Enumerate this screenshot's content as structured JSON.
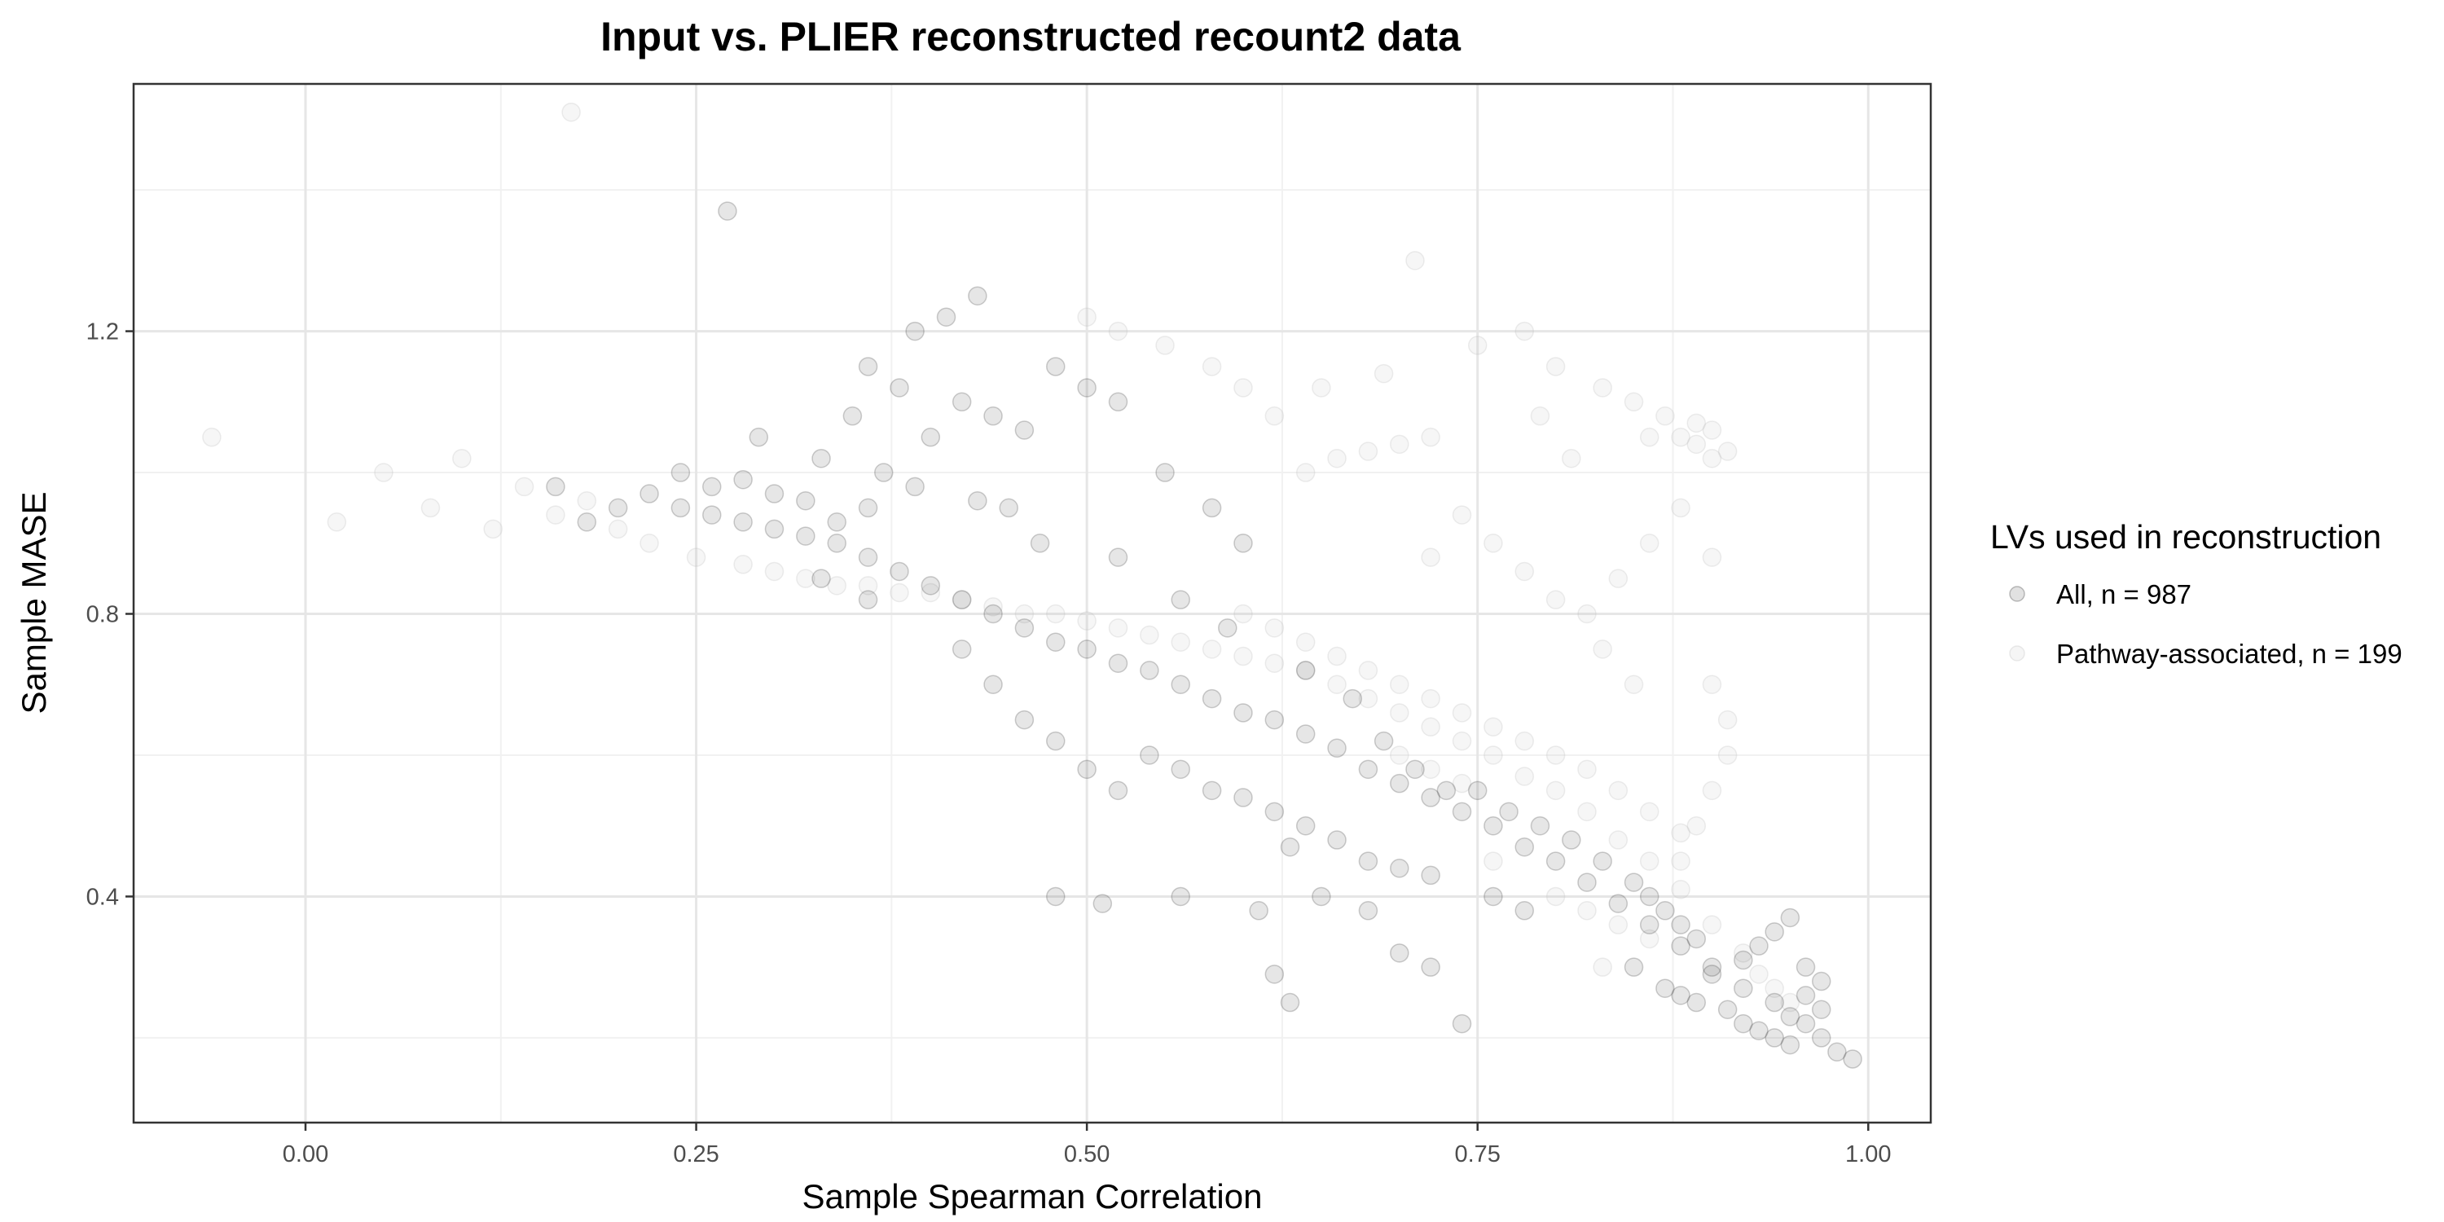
{
  "chart_data": {
    "type": "scatter",
    "title": "Input vs. PLIER reconstructed recount2 data",
    "xlabel": "Sample Spearman Correlation",
    "ylabel": "Sample MASE",
    "xlim": [
      -0.11,
      1.04
    ],
    "ylim": [
      0.08,
      1.55
    ],
    "x_ticks": [
      0.0,
      0.25,
      0.5,
      0.75,
      1.0
    ],
    "x_tick_labels": [
      "0.00",
      "0.25",
      "0.50",
      "0.75",
      "1.00"
    ],
    "y_ticks": [
      0.4,
      0.8,
      1.2
    ],
    "y_tick_labels": [
      "0.4",
      "0.8",
      "1.2"
    ],
    "grid": true,
    "legend_position": "right",
    "legend_title": "LVs used in reconstruction",
    "series": [
      {
        "name": "All, n = 987",
        "color": "#333333",
        "opacity": 0.12,
        "points": [
          [
            0.22,
            0.97
          ],
          [
            0.24,
            0.95
          ],
          [
            0.26,
            0.94
          ],
          [
            0.28,
            0.93
          ],
          [
            0.3,
            0.92
          ],
          [
            0.32,
            0.91
          ],
          [
            0.34,
            0.9
          ],
          [
            0.36,
            0.88
          ],
          [
            0.38,
            0.86
          ],
          [
            0.4,
            0.84
          ],
          [
            0.42,
            0.82
          ],
          [
            0.44,
            0.8
          ],
          [
            0.46,
            0.78
          ],
          [
            0.48,
            0.76
          ],
          [
            0.5,
            0.75
          ],
          [
            0.52,
            0.73
          ],
          [
            0.54,
            0.72
          ],
          [
            0.56,
            0.7
          ],
          [
            0.58,
            0.68
          ],
          [
            0.6,
            0.66
          ],
          [
            0.62,
            0.65
          ],
          [
            0.64,
            0.63
          ],
          [
            0.66,
            0.61
          ],
          [
            0.68,
            0.58
          ],
          [
            0.7,
            0.56
          ],
          [
            0.72,
            0.54
          ],
          [
            0.74,
            0.52
          ],
          [
            0.76,
            0.5
          ],
          [
            0.78,
            0.47
          ],
          [
            0.8,
            0.45
          ],
          [
            0.82,
            0.42
          ],
          [
            0.84,
            0.39
          ],
          [
            0.86,
            0.36
          ],
          [
            0.88,
            0.33
          ],
          [
            0.9,
            0.3
          ],
          [
            0.92,
            0.27
          ],
          [
            0.94,
            0.25
          ],
          [
            0.95,
            0.23
          ],
          [
            0.96,
            0.22
          ],
          [
            0.97,
            0.2
          ],
          [
            0.98,
            0.18
          ],
          [
            0.99,
            0.17
          ],
          [
            0.28,
            0.99
          ],
          [
            0.3,
            0.97
          ],
          [
            0.32,
            0.96
          ],
          [
            0.34,
            0.93
          ],
          [
            0.36,
            0.95
          ],
          [
            0.26,
            0.98
          ],
          [
            0.4,
            1.05
          ],
          [
            0.42,
            1.1
          ],
          [
            0.44,
            1.08
          ],
          [
            0.38,
            1.12
          ],
          [
            0.36,
            1.15
          ],
          [
            0.46,
            1.06
          ],
          [
            0.41,
            1.22
          ],
          [
            0.43,
            1.25
          ],
          [
            0.39,
            1.2
          ],
          [
            0.48,
            1.15
          ],
          [
            0.5,
            1.12
          ],
          [
            0.52,
            1.1
          ],
          [
            0.35,
            1.08
          ],
          [
            0.45,
            0.95
          ],
          [
            0.47,
            0.9
          ],
          [
            0.55,
            1.0
          ],
          [
            0.58,
            0.95
          ],
          [
            0.6,
            0.9
          ],
          [
            0.54,
            0.6
          ],
          [
            0.56,
            0.58
          ],
          [
            0.58,
            0.55
          ],
          [
            0.6,
            0.54
          ],
          [
            0.62,
            0.52
          ],
          [
            0.64,
            0.5
          ],
          [
            0.52,
            0.55
          ],
          [
            0.5,
            0.58
          ],
          [
            0.48,
            0.62
          ],
          [
            0.46,
            0.65
          ],
          [
            0.44,
            0.7
          ],
          [
            0.42,
            0.75
          ],
          [
            0.66,
            0.48
          ],
          [
            0.68,
            0.45
          ],
          [
            0.7,
            0.44
          ],
          [
            0.72,
            0.43
          ],
          [
            0.63,
            0.47
          ],
          [
            0.65,
            0.4
          ],
          [
            0.48,
            0.4
          ],
          [
            0.51,
            0.39
          ],
          [
            0.56,
            0.4
          ],
          [
            0.61,
            0.38
          ],
          [
            0.62,
            0.29
          ],
          [
            0.63,
            0.25
          ],
          [
            0.68,
            0.38
          ],
          [
            0.7,
            0.32
          ],
          [
            0.72,
            0.3
          ],
          [
            0.74,
            0.22
          ],
          [
            0.76,
            0.4
          ],
          [
            0.78,
            0.38
          ],
          [
            0.85,
            0.3
          ],
          [
            0.87,
            0.27
          ],
          [
            0.88,
            0.26
          ],
          [
            0.89,
            0.25
          ],
          [
            0.9,
            0.29
          ],
          [
            0.91,
            0.24
          ],
          [
            0.92,
            0.31
          ],
          [
            0.93,
            0.33
          ],
          [
            0.94,
            0.35
          ],
          [
            0.95,
            0.37
          ],
          [
            0.93,
            0.21
          ],
          [
            0.94,
            0.2
          ],
          [
            0.95,
            0.19
          ],
          [
            0.96,
            0.26
          ],
          [
            0.97,
            0.28
          ],
          [
            0.92,
            0.22
          ],
          [
            0.96,
            0.3
          ],
          [
            0.97,
            0.24
          ],
          [
            0.27,
            1.37
          ],
          [
            0.29,
            1.05
          ],
          [
            0.33,
            1.02
          ],
          [
            0.37,
            1.0
          ],
          [
            0.39,
            0.98
          ],
          [
            0.43,
            0.96
          ],
          [
            0.2,
            0.95
          ],
          [
            0.18,
            0.93
          ],
          [
            0.16,
            0.98
          ],
          [
            0.24,
            1.0
          ],
          [
            0.33,
            0.85
          ],
          [
            0.36,
            0.82
          ],
          [
            0.52,
            0.88
          ],
          [
            0.56,
            0.82
          ],
          [
            0.59,
            0.78
          ],
          [
            0.64,
            0.72
          ],
          [
            0.67,
            0.68
          ],
          [
            0.69,
            0.62
          ],
          [
            0.71,
            0.58
          ],
          [
            0.73,
            0.55
          ],
          [
            0.75,
            0.55
          ],
          [
            0.77,
            0.52
          ],
          [
            0.79,
            0.5
          ],
          [
            0.81,
            0.48
          ],
          [
            0.83,
            0.45
          ],
          [
            0.85,
            0.42
          ],
          [
            0.86,
            0.4
          ],
          [
            0.87,
            0.38
          ],
          [
            0.88,
            0.36
          ],
          [
            0.89,
            0.34
          ]
        ]
      },
      {
        "name": "Pathway-associated, n = 199",
        "color": "#bdbdbd",
        "opacity": 0.14,
        "points": [
          [
            -0.06,
            1.05
          ],
          [
            0.02,
            0.93
          ],
          [
            0.05,
            1.0
          ],
          [
            0.08,
            0.95
          ],
          [
            0.1,
            1.02
          ],
          [
            0.12,
            0.92
          ],
          [
            0.14,
            0.98
          ],
          [
            0.16,
            0.94
          ],
          [
            0.18,
            0.96
          ],
          [
            0.2,
            0.92
          ],
          [
            0.22,
            0.9
          ],
          [
            0.25,
            0.88
          ],
          [
            0.28,
            0.87
          ],
          [
            0.3,
            0.86
          ],
          [
            0.32,
            0.85
          ],
          [
            0.34,
            0.84
          ],
          [
            0.36,
            0.84
          ],
          [
            0.38,
            0.83
          ],
          [
            0.4,
            0.83
          ],
          [
            0.42,
            0.82
          ],
          [
            0.44,
            0.81
          ],
          [
            0.46,
            0.8
          ],
          [
            0.48,
            0.8
          ],
          [
            0.5,
            0.79
          ],
          [
            0.52,
            0.78
          ],
          [
            0.54,
            0.77
          ],
          [
            0.56,
            0.76
          ],
          [
            0.58,
            0.75
          ],
          [
            0.6,
            0.74
          ],
          [
            0.62,
            0.73
          ],
          [
            0.64,
            0.72
          ],
          [
            0.66,
            0.7
          ],
          [
            0.68,
            0.68
          ],
          [
            0.7,
            0.66
          ],
          [
            0.72,
            0.64
          ],
          [
            0.74,
            0.62
          ],
          [
            0.76,
            0.6
          ],
          [
            0.78,
            0.57
          ],
          [
            0.8,
            0.55
          ],
          [
            0.82,
            0.52
          ],
          [
            0.84,
            0.48
          ],
          [
            0.86,
            0.45
          ],
          [
            0.88,
            0.41
          ],
          [
            0.9,
            0.36
          ],
          [
            0.92,
            0.32
          ],
          [
            0.93,
            0.29
          ],
          [
            0.94,
            0.27
          ],
          [
            0.95,
            0.25
          ],
          [
            0.6,
            0.8
          ],
          [
            0.62,
            0.78
          ],
          [
            0.64,
            0.76
          ],
          [
            0.66,
            0.74
          ],
          [
            0.68,
            0.72
          ],
          [
            0.7,
            0.7
          ],
          [
            0.72,
            0.68
          ],
          [
            0.74,
            0.66
          ],
          [
            0.76,
            0.64
          ],
          [
            0.78,
            0.62
          ],
          [
            0.8,
            0.6
          ],
          [
            0.82,
            0.58
          ],
          [
            0.84,
            0.55
          ],
          [
            0.86,
            0.52
          ],
          [
            0.88,
            0.49
          ],
          [
            0.7,
            0.6
          ],
          [
            0.72,
            0.58
          ],
          [
            0.74,
            0.56
          ],
          [
            0.88,
            1.05
          ],
          [
            0.89,
            1.04
          ],
          [
            0.9,
            1.06
          ],
          [
            0.91,
            1.03
          ],
          [
            0.9,
            1.02
          ],
          [
            0.89,
            1.07
          ],
          [
            0.87,
            1.08
          ],
          [
            0.86,
            1.05
          ],
          [
            0.85,
            1.1
          ],
          [
            0.83,
            1.12
          ],
          [
            0.8,
            1.15
          ],
          [
            0.78,
            1.2
          ],
          [
            0.75,
            1.18
          ],
          [
            0.72,
            1.05
          ],
          [
            0.7,
            1.04
          ],
          [
            0.68,
            1.03
          ],
          [
            0.66,
            1.02
          ],
          [
            0.64,
            1.0
          ],
          [
            0.62,
            1.08
          ],
          [
            0.6,
            1.12
          ],
          [
            0.58,
            1.15
          ],
          [
            0.55,
            1.18
          ],
          [
            0.52,
            1.2
          ],
          [
            0.5,
            1.22
          ],
          [
            0.82,
            0.8
          ],
          [
            0.84,
            0.85
          ],
          [
            0.86,
            0.9
          ],
          [
            0.88,
            0.95
          ],
          [
            0.9,
            0.88
          ],
          [
            0.85,
            0.7
          ],
          [
            0.83,
            0.75
          ],
          [
            0.8,
            0.82
          ],
          [
            0.78,
            0.86
          ],
          [
            0.76,
            0.9
          ],
          [
            0.74,
            0.94
          ],
          [
            0.72,
            0.88
          ],
          [
            0.17,
            1.51
          ],
          [
            0.71,
            1.3
          ],
          [
            0.65,
            1.12
          ],
          [
            0.69,
            1.14
          ],
          [
            0.79,
            1.08
          ],
          [
            0.81,
            1.02
          ],
          [
            0.9,
            0.7
          ],
          [
            0.91,
            0.65
          ],
          [
            0.91,
            0.6
          ],
          [
            0.9,
            0.55
          ],
          [
            0.89,
            0.5
          ],
          [
            0.88,
            0.45
          ],
          [
            0.8,
            0.4
          ],
          [
            0.82,
            0.38
          ],
          [
            0.84,
            0.36
          ],
          [
            0.86,
            0.34
          ],
          [
            0.83,
            0.3
          ],
          [
            0.76,
            0.45
          ]
        ]
      }
    ]
  }
}
